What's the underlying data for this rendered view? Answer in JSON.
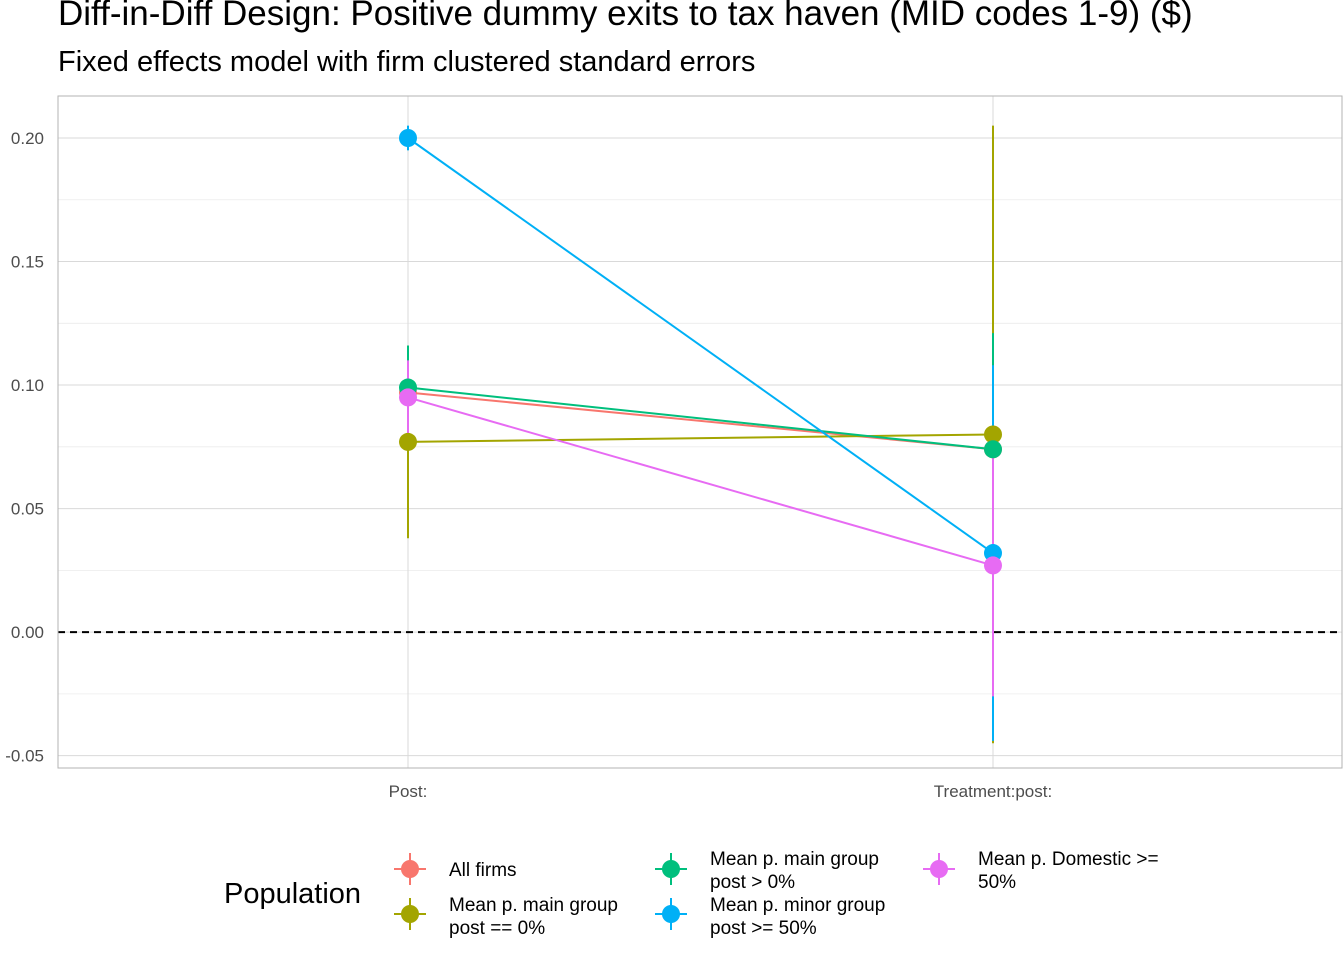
{
  "chart_data": {
    "type": "scatter",
    "title": "Diff-in-Diff Design: Positive dummy exits to tax haven (MID codes 1-9)  ($)",
    "subtitle": "Fixed effects model with firm clustered standard errors",
    "xlabel": "",
    "ylabel": "",
    "categories": [
      "Post:",
      "Treatment:post:"
    ],
    "ylim": [
      -0.055,
      0.217
    ],
    "yticks": [
      -0.05,
      0.0,
      0.05,
      0.1,
      0.15,
      0.2
    ],
    "ytick_labels": [
      "-0.05",
      "0.00",
      "0.05",
      "0.10",
      "0.15",
      "0.20"
    ],
    "reference_line": {
      "y": 0,
      "style": "dashed",
      "color": "#000000"
    },
    "grid": true,
    "legend": {
      "title": "Population",
      "position": "bottom"
    },
    "series": [
      {
        "name": "All firms",
        "color": "#F8766D",
        "values": [
          0.097,
          0.074
        ],
        "ci_low": [
          0.083,
          0.056
        ],
        "ci_high": [
          0.111,
          0.092
        ]
      },
      {
        "name": "Mean p. main group post == 0%",
        "color": "#A3A500",
        "values": [
          0.077,
          0.08
        ],
        "ci_low": [
          0.038,
          -0.045
        ],
        "ci_high": [
          0.116,
          0.205
        ]
      },
      {
        "name": "Mean p. main group post > 0%",
        "color": "#00BF7D",
        "values": [
          0.099,
          0.074
        ],
        "ci_low": [
          0.083,
          0.027
        ],
        "ci_high": [
          0.116,
          0.121
        ]
      },
      {
        "name": "Mean p. minor group post >= 50%",
        "color": "#00B0F6",
        "values": [
          0.2,
          0.032
        ],
        "ci_low": [
          0.195,
          -0.044
        ],
        "ci_high": [
          0.205,
          0.108
        ]
      },
      {
        "name": "Mean p. Domestic >= 50%",
        "color": "#E76BF3",
        "values": [
          0.095,
          0.027
        ],
        "ci_low": [
          0.08,
          -0.026
        ],
        "ci_high": [
          0.11,
          0.08
        ]
      }
    ],
    "legend_items": [
      {
        "lines": [
          "All firms"
        ]
      },
      {
        "lines": [
          "Mean p. main group",
          "post == 0%"
        ]
      },
      {
        "lines": [
          "Mean p. main group",
          "post > 0%"
        ]
      },
      {
        "lines": [
          "Mean p. minor group",
          "post >= 50%"
        ]
      },
      {
        "lines": [
          "Mean p. Domestic >=",
          "50%"
        ]
      }
    ]
  }
}
